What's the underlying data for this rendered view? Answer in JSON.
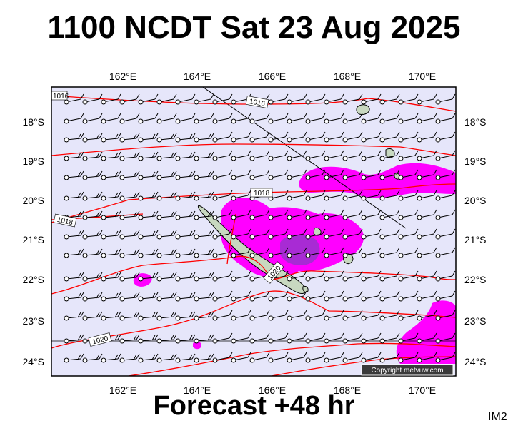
{
  "title": "1100 NCDT Sat 23 Aug 2025",
  "footer": "Forecast +48 hr",
  "corner_label": "IM2",
  "copyright": "Copyright metvuw.com",
  "lon_labels": [
    "162°E",
    "164°E",
    "166°E",
    "168°E",
    "170°E"
  ],
  "lat_labels": [
    "18°S",
    "19°S",
    "20°S",
    "21°S",
    "22°S",
    "23°S",
    "24°S"
  ],
  "isobar_labels": [
    "1016",
    "1016",
    "1018",
    "1018",
    "1020",
    "1020"
  ],
  "colors": {
    "ocean": "#e6e6fa",
    "isobar": "#ff0000",
    "rain_light": "#ff00ff",
    "rain_heavy": "#9932cc",
    "land": "#c8d8c0"
  }
}
